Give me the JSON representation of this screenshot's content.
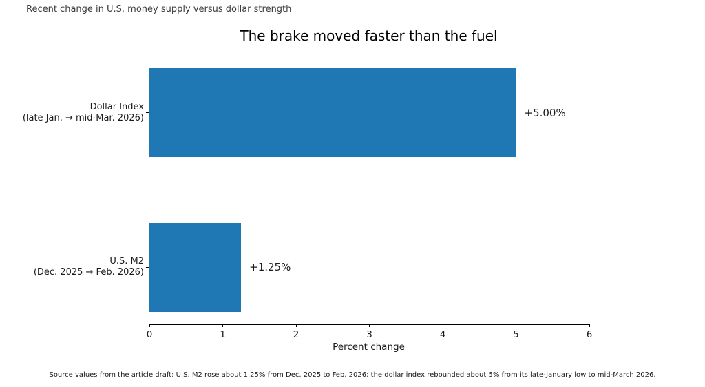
{
  "annotation": "Recent change in U.S. money supply versus dollar strength",
  "source_note": "Source values from the article draft: U.S. M2 rose about 1.25% from Dec. 2025 to Feb. 2026; the dollar index rebounded about 5% from its late-January low to mid-March 2026.",
  "colors": {
    "bar": "#1f77b4",
    "axis": "#000000",
    "text": "#1a1a1a"
  },
  "chart_data": {
    "type": "bar",
    "orientation": "horizontal",
    "title": "The brake moved faster than the fuel",
    "xlabel": "Percent change",
    "ylabel": "",
    "xlim": [
      0,
      6
    ],
    "xticks": [
      "0",
      "1",
      "2",
      "3",
      "4",
      "5",
      "6"
    ],
    "grid": false,
    "legend": "none",
    "categories": [
      "Dollar Index\n(late Jan. → mid-Mar. 2026)",
      "U.S. M2\n(Dec. 2025 → Feb. 2026)"
    ],
    "values": [
      5.0,
      1.25
    ],
    "value_labels": [
      "+5.00%",
      "+1.25%"
    ]
  }
}
